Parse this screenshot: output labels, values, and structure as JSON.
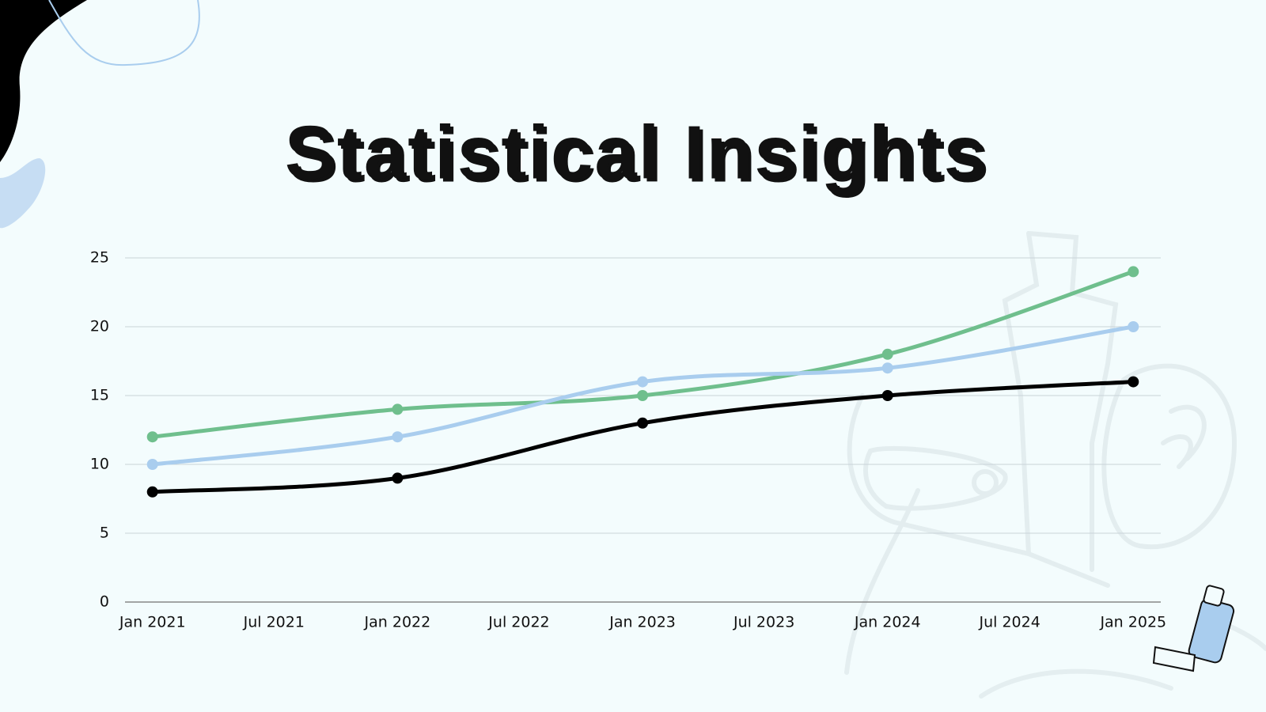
{
  "chart_data": {
    "type": "line",
    "title": "Statistical Insights",
    "x": [
      "Jan 2021",
      "Jan 2022",
      "Jan 2023",
      "Jan 2024",
      "Jan 2025"
    ],
    "xticks": [
      "Jan 2021",
      "Jul 2021",
      "Jan 2022",
      "Jul 2022",
      "Jan 2023",
      "Jul 2023",
      "Jan 2024",
      "Jul 2024",
      "Jan 2025"
    ],
    "series": [
      {
        "color": "#6fbf8d",
        "values": [
          12,
          14,
          15,
          18,
          24
        ]
      },
      {
        "color": "#a9cdee",
        "values": [
          10,
          12,
          16,
          17,
          20
        ]
      },
      {
        "color": "#000000",
        "values": [
          8,
          9,
          13,
          15,
          16
        ]
      }
    ],
    "ylim": [
      0,
      25
    ],
    "yticks": [
      0,
      5,
      10,
      15,
      20,
      25
    ],
    "grid": true,
    "smooth": true
  }
}
